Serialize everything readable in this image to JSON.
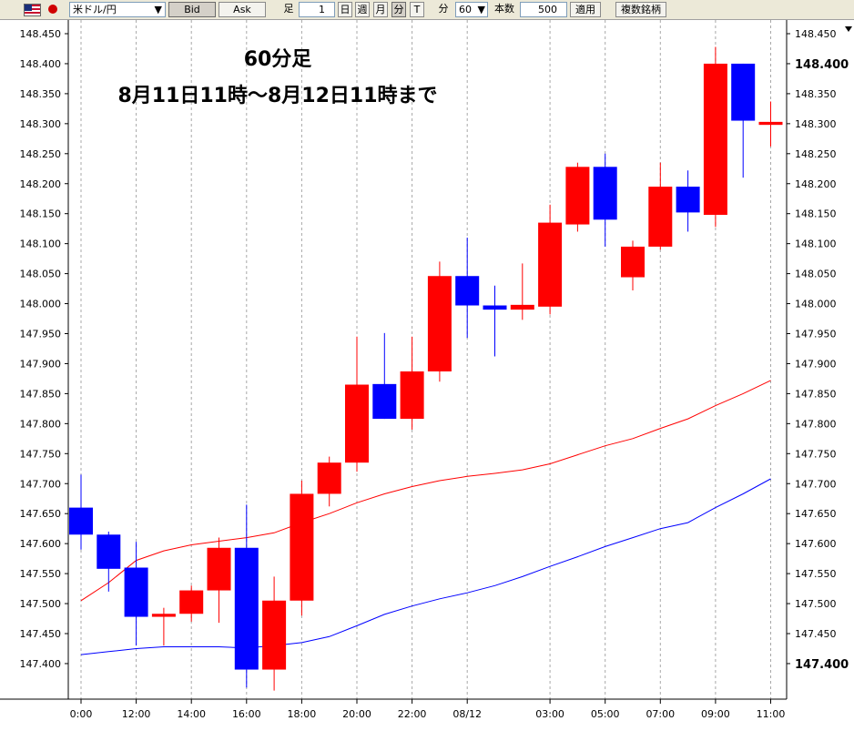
{
  "toolbar": {
    "symbol": "米ドル/円",
    "bid_label": "Bid",
    "ask_label": "Ask",
    "ashi_label": "足",
    "ashi_value": "1",
    "day_label": "日",
    "week_label": "週",
    "month_label": "月",
    "minute_label": "分",
    "tick_label": "T",
    "minute_unit_label": "分",
    "minute_value": "60",
    "count_label": "本数",
    "count_value": "500",
    "apply_label": "適用",
    "multi_label": "複数銘柄"
  },
  "chart_data": {
    "type": "candlestick",
    "title": "60分足",
    "subtitle": "8月11日11時〜8月12日11時まで",
    "ylim": [
      147.35,
      148.475
    ],
    "yticks": [
      "148.450",
      "148.400",
      "148.350",
      "148.300",
      "148.250",
      "148.200",
      "148.150",
      "148.100",
      "148.050",
      "148.000",
      "147.950",
      "147.900",
      "147.850",
      "147.800",
      "147.750",
      "147.700",
      "147.650",
      "147.600",
      "147.550",
      "147.500",
      "147.450",
      "147.400"
    ],
    "right_price_labels": [
      "148.400",
      "147.400"
    ],
    "xtick_labels": [
      {
        "label": "0:00",
        "index": 0
      },
      {
        "label": "12:00",
        "index": 2
      },
      {
        "label": "14:00",
        "index": 4
      },
      {
        "label": "16:00",
        "index": 6
      },
      {
        "label": "18:00",
        "index": 8
      },
      {
        "label": "20:00",
        "index": 10
      },
      {
        "label": "22:00",
        "index": 12
      },
      {
        "label": "08/12",
        "index": 14
      },
      {
        "label": "03:00",
        "index": 17
      },
      {
        "label": "05:00",
        "index": 19
      },
      {
        "label": "07:00",
        "index": 21
      },
      {
        "label": "09:00",
        "index": 23
      },
      {
        "label": "11:00",
        "index": 25
      }
    ],
    "up_color": "#ff0000",
    "down_color": "#0000ff",
    "candles": [
      {
        "open": 147.66,
        "high": 147.715,
        "low": 147.59,
        "close": 147.615
      },
      {
        "open": 147.615,
        "high": 147.62,
        "low": 147.52,
        "close": 147.558
      },
      {
        "open": 147.56,
        "high": 147.603,
        "low": 147.43,
        "close": 147.478
      },
      {
        "open": 147.478,
        "high": 147.493,
        "low": 147.43,
        "close": 147.483
      },
      {
        "open": 147.483,
        "high": 147.53,
        "low": 147.47,
        "close": 147.522
      },
      {
        "open": 147.522,
        "high": 147.61,
        "low": 147.468,
        "close": 147.593
      },
      {
        "open": 147.593,
        "high": 147.665,
        "low": 147.36,
        "close": 147.39
      },
      {
        "open": 147.39,
        "high": 147.545,
        "low": 147.355,
        "close": 147.505
      },
      {
        "open": 147.505,
        "high": 147.705,
        "low": 147.48,
        "close": 147.683
      },
      {
        "open": 147.683,
        "high": 147.745,
        "low": 147.662,
        "close": 147.735
      },
      {
        "open": 147.735,
        "high": 147.945,
        "low": 147.72,
        "close": 147.865
      },
      {
        "open": 147.866,
        "high": 147.951,
        "low": 147.808,
        "close": 147.808
      },
      {
        "open": 147.808,
        "high": 147.945,
        "low": 147.79,
        "close": 147.887
      },
      {
        "open": 147.887,
        "high": 148.07,
        "low": 147.87,
        "close": 148.046
      },
      {
        "open": 148.046,
        "high": 148.11,
        "low": 147.943,
        "close": 147.997
      },
      {
        "open": 147.997,
        "high": 148.03,
        "low": 147.912,
        "close": 147.99
      },
      {
        "open": 147.99,
        "high": 148.067,
        "low": 147.973,
        "close": 147.998
      },
      {
        "open": 147.995,
        "high": 148.165,
        "low": 147.982,
        "close": 148.135
      },
      {
        "open": 148.132,
        "high": 148.235,
        "low": 148.12,
        "close": 148.228
      },
      {
        "open": 148.228,
        "high": 148.25,
        "low": 148.095,
        "close": 148.14
      },
      {
        "open": 148.044,
        "high": 148.105,
        "low": 148.022,
        "close": 148.095
      },
      {
        "open": 148.095,
        "high": 148.235,
        "low": 148.09,
        "close": 148.195
      },
      {
        "open": 148.195,
        "high": 148.222,
        "low": 148.12,
        "close": 148.152
      },
      {
        "open": 148.148,
        "high": 148.428,
        "low": 148.128,
        "close": 148.4
      },
      {
        "open": 148.4,
        "high": 148.4,
        "low": 148.21,
        "close": 148.305
      },
      {
        "open": 148.298,
        "high": 148.337,
        "low": 148.262,
        "close": 148.303
      }
    ],
    "series": [
      {
        "color": "#ff0000",
        "values": [
          147.505,
          147.535,
          147.572,
          147.588,
          147.598,
          147.604,
          147.61,
          147.618,
          147.635,
          147.65,
          147.668,
          147.683,
          147.695,
          147.705,
          147.712,
          147.717,
          147.723,
          147.733,
          147.748,
          147.763,
          147.775,
          147.792,
          147.808,
          147.83,
          147.85,
          147.872
        ]
      },
      {
        "color": "#0000ff",
        "values": [
          147.415,
          147.42,
          147.425,
          147.428,
          147.428,
          147.428,
          147.426,
          147.43,
          147.435,
          147.445,
          147.463,
          147.482,
          147.496,
          147.508,
          147.518,
          147.53,
          147.545,
          147.562,
          147.578,
          147.595,
          147.61,
          147.625,
          147.635,
          147.66,
          147.683,
          147.708
        ]
      }
    ]
  }
}
